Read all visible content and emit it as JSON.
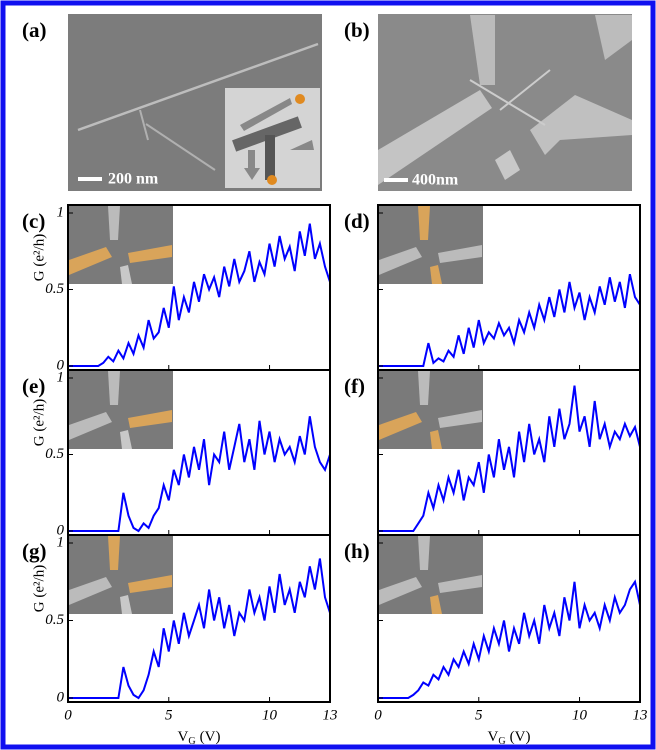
{
  "images": [
    {
      "label": "(a)",
      "scale_bar": "200 nm"
    },
    {
      "label": "(b)",
      "scale_bar": "400nm"
    }
  ],
  "chart_data": {
    "type": "line",
    "x": [
      0,
      0.25,
      0.5,
      0.75,
      1,
      1.25,
      1.5,
      1.75,
      2,
      2.25,
      2.5,
      2.75,
      3,
      3.25,
      3.5,
      3.75,
      4,
      4.25,
      4.5,
      4.75,
      5,
      5.25,
      5.5,
      5.75,
      6,
      6.25,
      6.5,
      6.75,
      7,
      7.25,
      7.5,
      7.75,
      8,
      8.25,
      8.5,
      8.75,
      9,
      9.25,
      9.5,
      9.75,
      10,
      10.25,
      10.5,
      10.75,
      11,
      11.25,
      11.5,
      11.75,
      12,
      12.25,
      12.5,
      12.75,
      13
    ],
    "xlim": [
      0,
      13
    ],
    "ylim": [
      0,
      1
    ],
    "xticks": [
      0,
      5,
      10,
      13
    ],
    "yticks": [
      0,
      0.5,
      1
    ],
    "xlabel": [
      "V",
      "G",
      "(V)"
    ],
    "ylabel": "G (e²/h)",
    "series": [
      {
        "name": "(c)",
        "color": "#0000ff",
        "values": [
          0,
          0,
          0,
          0,
          0,
          0,
          0,
          0.02,
          0.06,
          0.03,
          0.1,
          0.05,
          0.15,
          0.08,
          0.2,
          0.12,
          0.3,
          0.18,
          0.22,
          0.38,
          0.25,
          0.52,
          0.3,
          0.45,
          0.35,
          0.55,
          0.42,
          0.6,
          0.5,
          0.58,
          0.45,
          0.65,
          0.52,
          0.7,
          0.55,
          0.62,
          0.75,
          0.55,
          0.68,
          0.6,
          0.8,
          0.65,
          0.85,
          0.7,
          0.78,
          0.62,
          0.88,
          0.72,
          0.93,
          0.7,
          0.8,
          0.65,
          0.55
        ]
      },
      {
        "name": "(d)",
        "color": "#0000ff",
        "values": [
          0,
          0,
          0,
          0,
          0,
          0,
          0,
          0,
          0,
          0,
          0.15,
          0.02,
          0.05,
          0.03,
          0.1,
          0.06,
          0.2,
          0.08,
          0.25,
          0.12,
          0.3,
          0.15,
          0.22,
          0.18,
          0.28,
          0.2,
          0.25,
          0.15,
          0.3,
          0.22,
          0.35,
          0.25,
          0.4,
          0.3,
          0.45,
          0.32,
          0.5,
          0.35,
          0.55,
          0.38,
          0.48,
          0.3,
          0.45,
          0.35,
          0.52,
          0.4,
          0.58,
          0.42,
          0.55,
          0.38,
          0.6,
          0.45,
          0.4
        ]
      },
      {
        "name": "(e)",
        "color": "#0000ff",
        "values": [
          0,
          0,
          0,
          0,
          0,
          0,
          0,
          0,
          0,
          0,
          0,
          0.25,
          0.1,
          0.02,
          0,
          0.05,
          0.02,
          0.1,
          0.15,
          0.3,
          0.2,
          0.4,
          0.3,
          0.5,
          0.35,
          0.55,
          0.4,
          0.6,
          0.3,
          0.5,
          0.45,
          0.65,
          0.4,
          0.55,
          0.7,
          0.45,
          0.6,
          0.4,
          0.72,
          0.5,
          0.65,
          0.45,
          0.6,
          0.5,
          0.55,
          0.45,
          0.62,
          0.5,
          0.75,
          0.55,
          0.45,
          0.4,
          0.5
        ]
      },
      {
        "name": "(f)",
        "color": "#0000ff",
        "values": [
          0,
          0,
          0,
          0,
          0,
          0,
          0,
          0,
          0.05,
          0.1,
          0.25,
          0.15,
          0.3,
          0.2,
          0.35,
          0.25,
          0.4,
          0.2,
          0.35,
          0.3,
          0.45,
          0.25,
          0.5,
          0.35,
          0.6,
          0.4,
          0.55,
          0.35,
          0.65,
          0.45,
          0.7,
          0.5,
          0.6,
          0.45,
          0.75,
          0.55,
          0.8,
          0.6,
          0.7,
          0.95,
          0.65,
          0.75,
          0.55,
          0.85,
          0.6,
          0.7,
          0.55,
          0.65,
          0.6,
          0.7,
          0.62,
          0.68,
          0.55
        ]
      },
      {
        "name": "(g)",
        "color": "#0000ff",
        "values": [
          0,
          0,
          0,
          0,
          0,
          0,
          0,
          0,
          0,
          0,
          0,
          0.2,
          0.08,
          0.02,
          0,
          0.05,
          0.15,
          0.3,
          0.2,
          0.45,
          0.3,
          0.5,
          0.35,
          0.55,
          0.4,
          0.5,
          0.6,
          0.45,
          0.7,
          0.5,
          0.65,
          0.45,
          0.6,
          0.4,
          0.55,
          0.5,
          0.7,
          0.55,
          0.65,
          0.5,
          0.72,
          0.55,
          0.8,
          0.6,
          0.7,
          0.55,
          0.75,
          0.65,
          0.85,
          0.7,
          0.9,
          0.65,
          0.55
        ]
      },
      {
        "name": "(h)",
        "color": "#0000ff",
        "values": [
          0,
          0,
          0,
          0,
          0,
          0,
          0,
          0.02,
          0.05,
          0.1,
          0.08,
          0.15,
          0.12,
          0.2,
          0.15,
          0.25,
          0.2,
          0.3,
          0.22,
          0.35,
          0.25,
          0.4,
          0.3,
          0.45,
          0.35,
          0.5,
          0.3,
          0.45,
          0.35,
          0.55,
          0.4,
          0.5,
          0.35,
          0.6,
          0.45,
          0.55,
          0.4,
          0.65,
          0.5,
          0.75,
          0.45,
          0.6,
          0.5,
          0.55,
          0.45,
          0.6,
          0.5,
          0.65,
          0.55,
          0.6,
          0.7,
          0.75,
          0.6
        ]
      }
    ]
  }
}
